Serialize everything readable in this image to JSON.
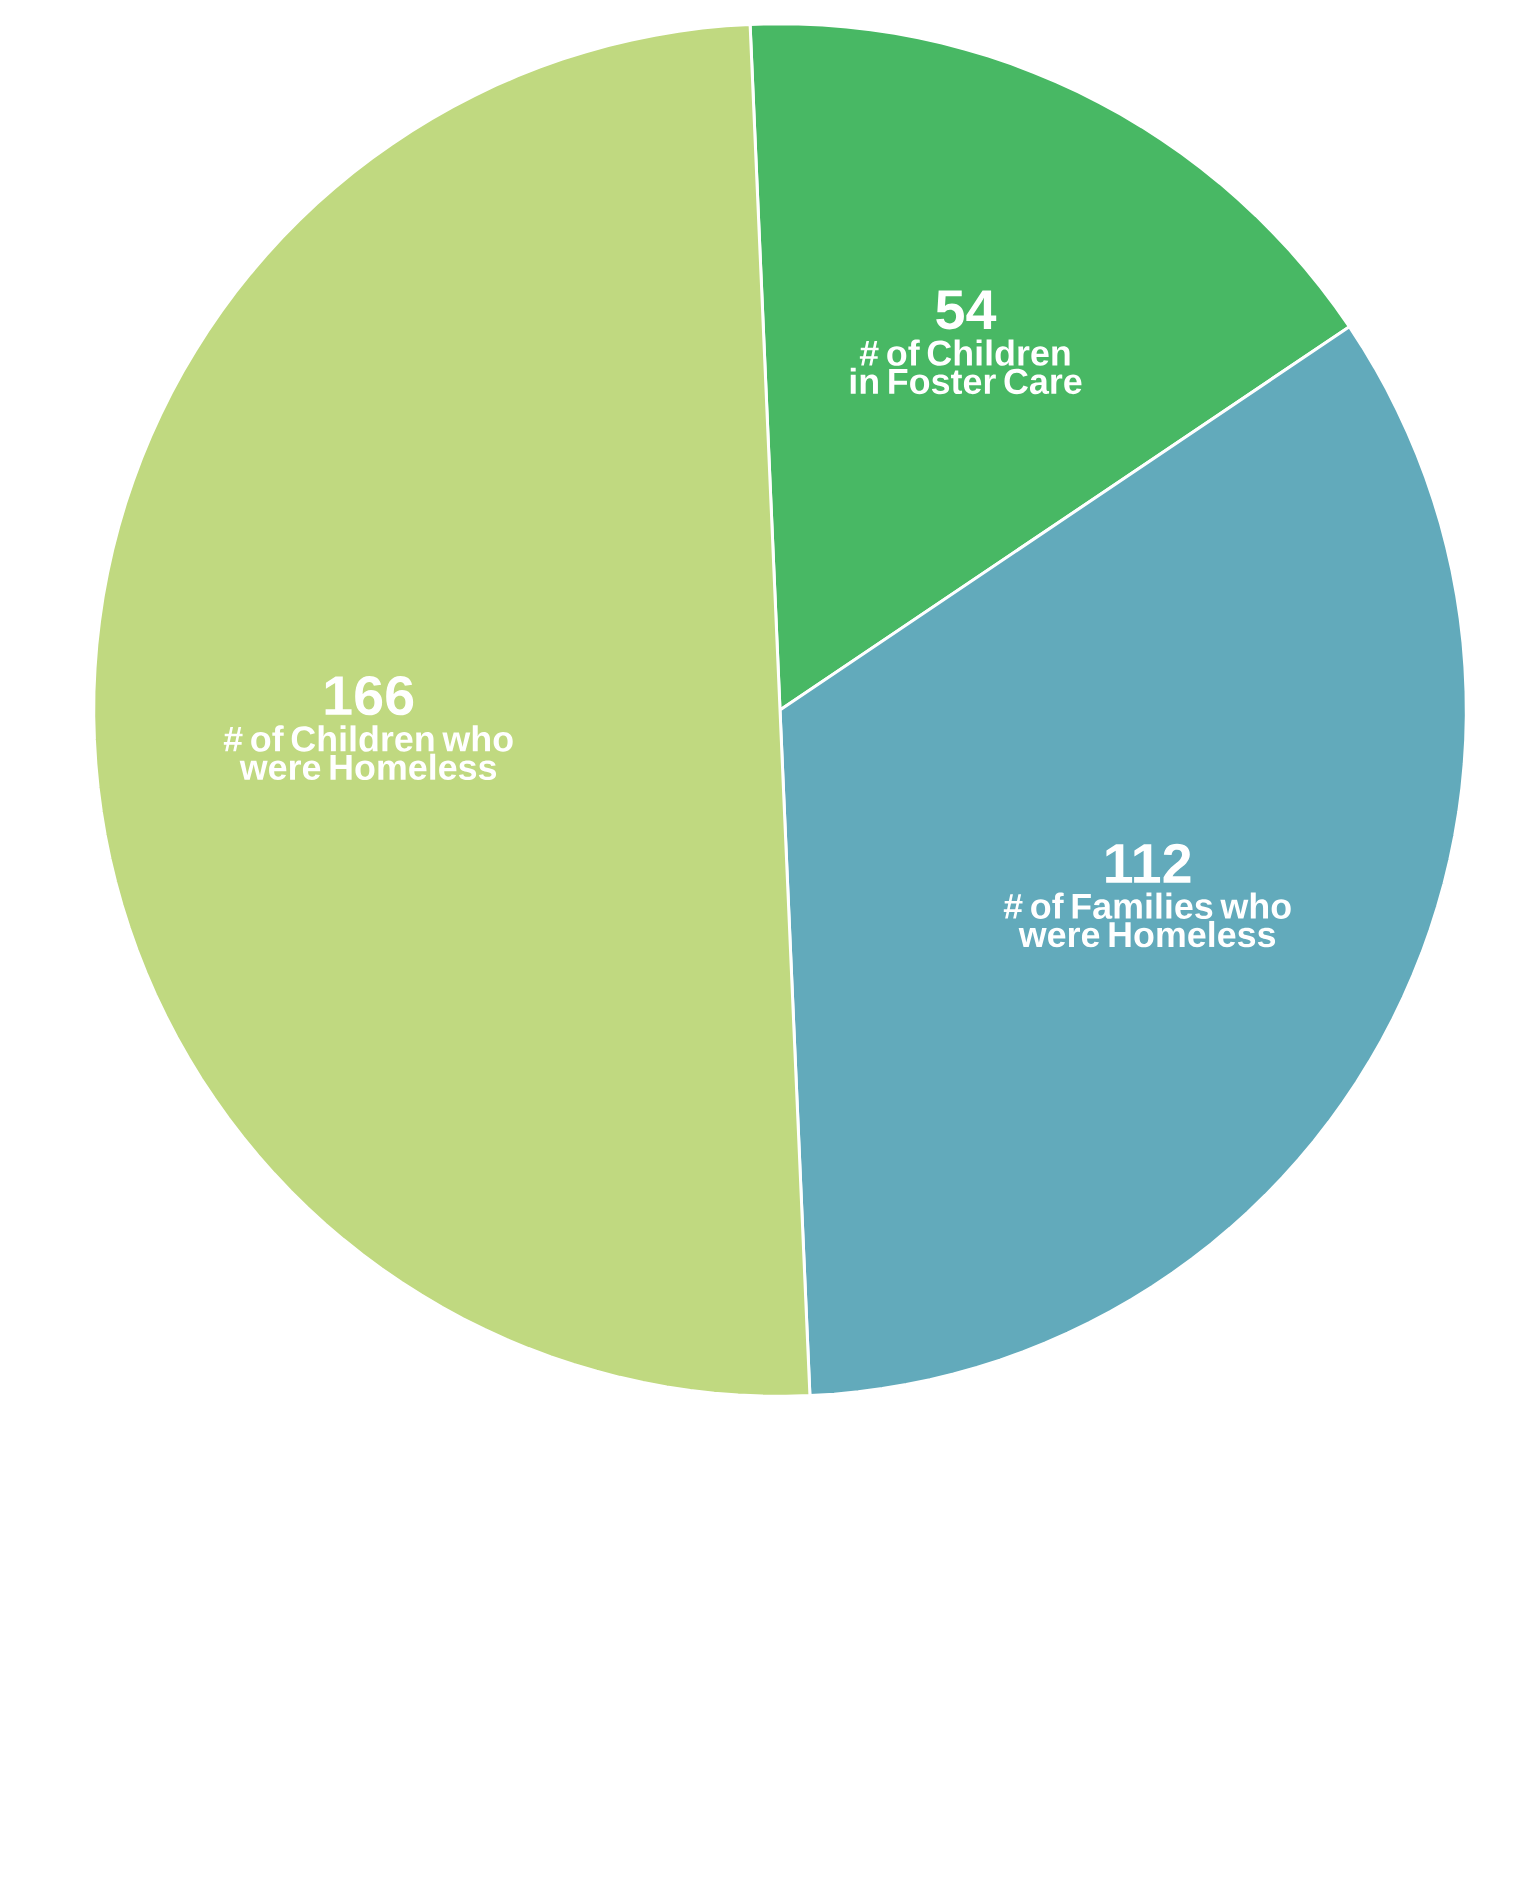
{
  "chart_data": {
    "type": "pie",
    "categories": [
      "# of Children in Foster Care",
      "# of Families who were Homeless",
      "# of Children who were Homeless"
    ],
    "values": [
      54,
      112,
      166
    ],
    "colors": [
      "#48b864",
      "#62aabb",
      "#c0d980"
    ],
    "data_labels": true
  }
}
